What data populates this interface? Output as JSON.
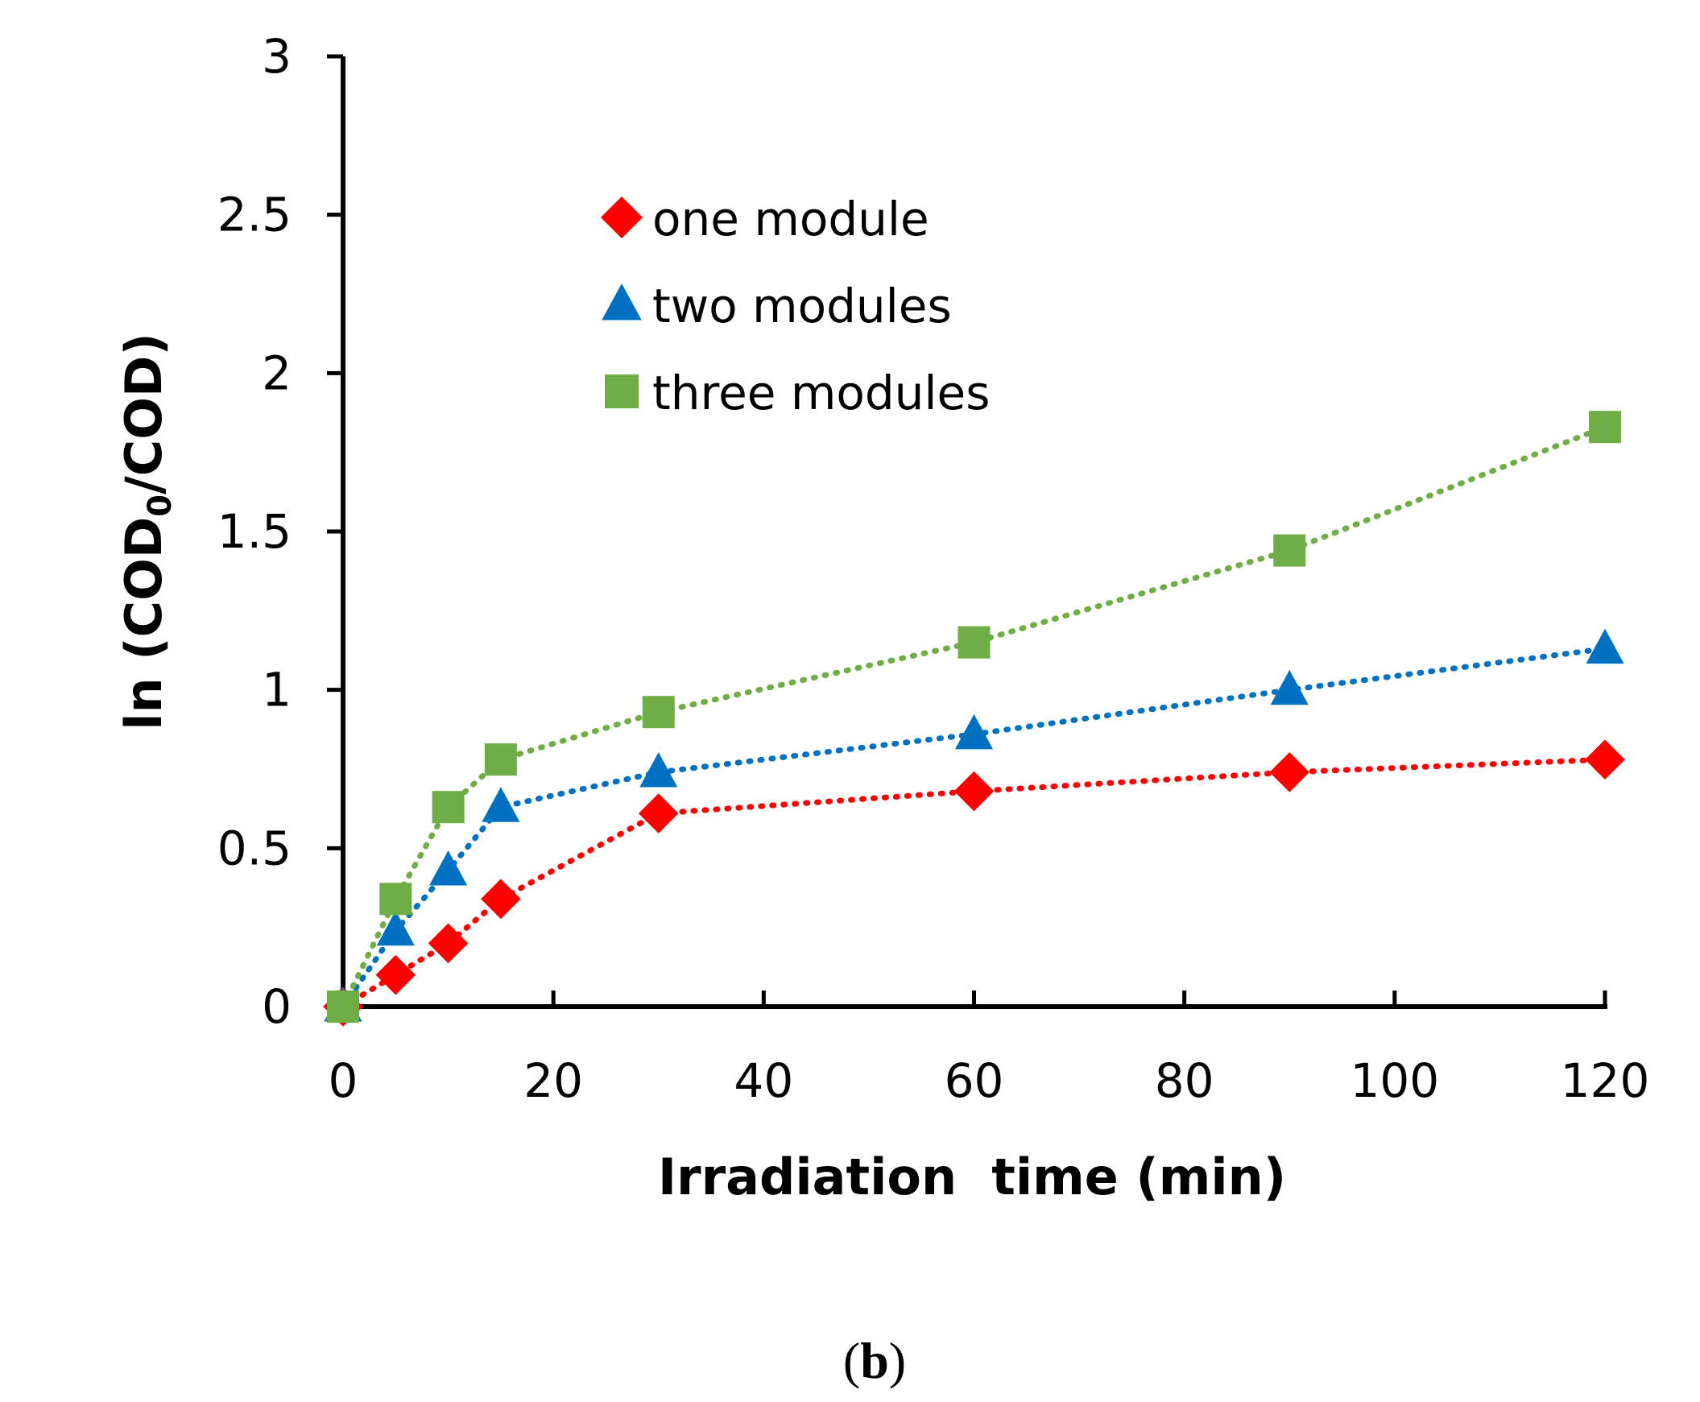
{
  "chart_data": {
    "type": "line",
    "title": "",
    "xlabel": "Irradiation  time (min)",
    "ylabel_parts": [
      "ln (COD",
      "0",
      "/COD)"
    ],
    "xlim": [
      0,
      120
    ],
    "ylim": [
      0,
      3
    ],
    "x_ticks": [
      0,
      20,
      40,
      60,
      80,
      100,
      120
    ],
    "x_tick_labels": [
      "0",
      "20",
      "40",
      "60",
      "80",
      "100",
      "120"
    ],
    "y_ticks": [
      0,
      0.5,
      1,
      1.5,
      2,
      2.5,
      3
    ],
    "y_tick_labels": [
      "0",
      "0.5",
      "1",
      "1.5",
      "2",
      "2.5",
      "3"
    ],
    "grid": false,
    "legend_position": "top-left-inside",
    "x": [
      0,
      5,
      10,
      15,
      30,
      60,
      90,
      120
    ],
    "series": [
      {
        "name": "one module",
        "marker": "diamond",
        "color": "#ff0000",
        "values": [
          0,
          0.1,
          0.2,
          0.34,
          0.61,
          0.68,
          0.74,
          0.78
        ]
      },
      {
        "name": "two modules",
        "marker": "triangle",
        "color": "#0070c0",
        "values": [
          0,
          0.24,
          0.43,
          0.63,
          0.74,
          0.86,
          1.0,
          1.13
        ]
      },
      {
        "name": "three modules",
        "marker": "square",
        "color": "#70ad47",
        "values": [
          0,
          0.34,
          0.63,
          0.78,
          0.93,
          1.15,
          1.44,
          1.83
        ]
      }
    ]
  },
  "caption": {
    "open": "(",
    "letter": "b",
    "close": ")"
  }
}
